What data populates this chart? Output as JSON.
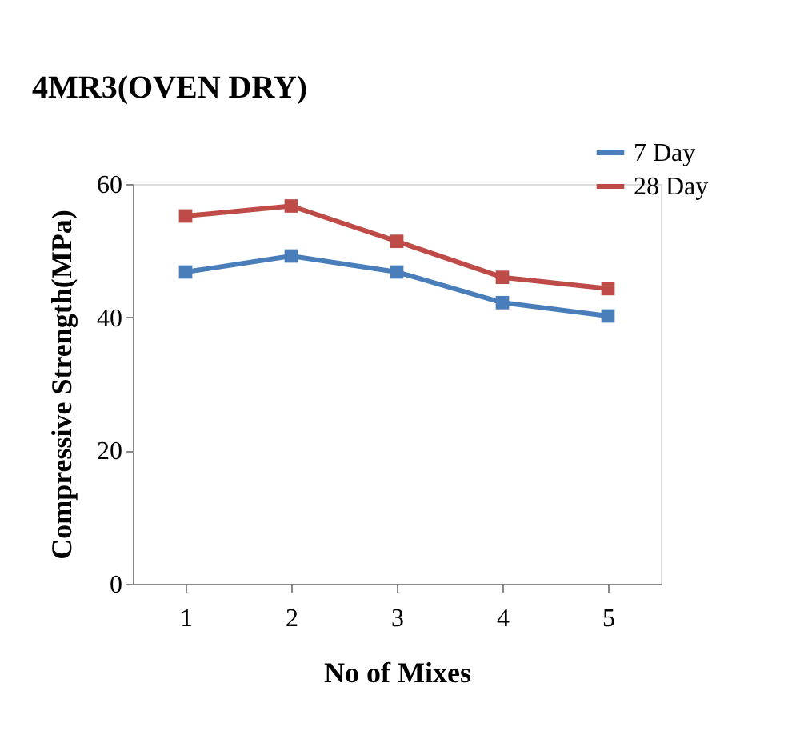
{
  "chart_data": {
    "type": "line",
    "title": "4MR3(OVEN DRY)",
    "xlabel": "No of Mixes",
    "ylabel": "Compressive Strength(MPa)",
    "categories": [
      "1",
      "2",
      "3",
      "4",
      "5"
    ],
    "series": [
      {
        "name": "7 Day",
        "color": "#4a7ebb",
        "values": [
          46.8,
          49.2,
          46.8,
          42.2,
          40.2
        ]
      },
      {
        "name": "28 Day",
        "color": "#be4b48",
        "values": [
          55.2,
          56.7,
          51.4,
          46.0,
          44.3
        ]
      }
    ],
    "ylim": [
      0,
      60
    ],
    "yticks": [
      0,
      20,
      40,
      60
    ],
    "grid": false,
    "legend": "top right",
    "marker": "square",
    "line_style": "solid"
  }
}
